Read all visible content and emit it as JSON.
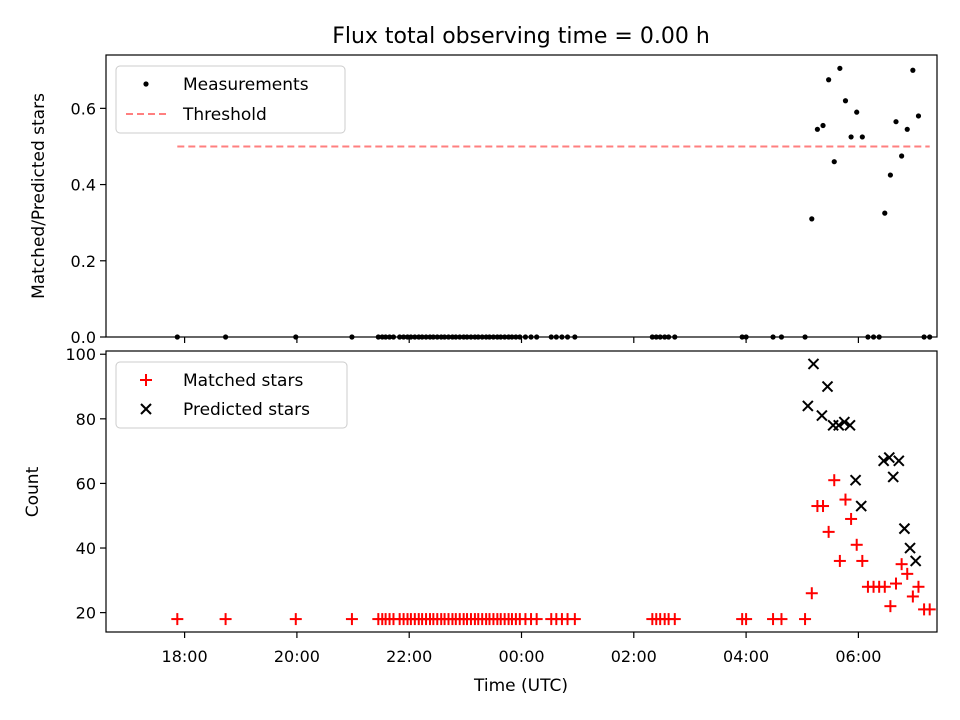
{
  "title": "Flux total observing time = 0.00 h",
  "xlabel": "Time (UTC)",
  "x_ticks": [
    "18:00",
    "20:00",
    "22:00",
    "00:00",
    "02:00",
    "04:00",
    "06:00"
  ],
  "colors": {
    "measurement": "#000000",
    "threshold": "#ff7f7f",
    "matched": "#ff0000",
    "predicted": "#000000"
  },
  "chart_data": [
    {
      "type": "scatter",
      "ylabel": "Matched/Predicted stars",
      "ylim": [
        0,
        0.74
      ],
      "y_ticks": [
        "0.0",
        "0.2",
        "0.4",
        "0.6"
      ],
      "xlim_hours": [
        16.6,
        31.4
      ],
      "legend_position": "top-left",
      "grid": false,
      "series": [
        {
          "name": "Measurements",
          "marker": "dot",
          "x_hours": [
            17.87,
            18.73,
            19.98,
            20.98,
            21.45,
            21.52,
            21.58,
            21.65,
            21.72,
            21.83,
            21.9,
            21.97,
            22.03,
            22.1,
            22.17,
            22.23,
            22.3,
            22.37,
            22.43,
            22.5,
            22.57,
            22.63,
            22.7,
            22.77,
            22.83,
            22.9,
            22.97,
            23.03,
            23.1,
            23.17,
            23.23,
            23.3,
            23.37,
            23.43,
            23.5,
            23.57,
            23.63,
            23.7,
            23.77,
            23.83,
            23.9,
            23.97,
            24.07,
            24.17,
            24.27,
            24.53,
            24.62,
            24.72,
            24.82,
            24.95,
            26.33,
            26.4,
            26.47,
            26.55,
            26.62,
            26.73,
            27.93,
            28.0,
            28.48,
            28.63,
            29.05,
            29.17,
            29.27,
            29.37,
            29.47,
            29.57,
            29.67,
            29.77,
            29.87,
            29.97,
            30.07,
            30.17,
            30.27,
            30.37,
            30.47,
            30.57,
            30.67,
            30.77,
            30.87,
            30.97,
            31.07,
            31.17,
            31.27
          ],
          "y": [
            0,
            0,
            0,
            0,
            0,
            0,
            0,
            0,
            0,
            0,
            0,
            0,
            0,
            0,
            0,
            0,
            0,
            0,
            0,
            0,
            0,
            0,
            0,
            0,
            0,
            0,
            0,
            0,
            0,
            0,
            0,
            0,
            0,
            0,
            0,
            0,
            0,
            0,
            0,
            0,
            0,
            0,
            0,
            0,
            0,
            0,
            0,
            0,
            0,
            0,
            0,
            0,
            0,
            0,
            0,
            0,
            0,
            0,
            0,
            0,
            0,
            0.31,
            0.545,
            0.555,
            0.675,
            0.46,
            0.705,
            0.62,
            0.525,
            0.59,
            0.525,
            0,
            0,
            0,
            0.325,
            0.425,
            0.565,
            0.475,
            0.545,
            0.7,
            0.58,
            0,
            0
          ]
        },
        {
          "name": "Threshold",
          "style": "dashed",
          "x_hours": [
            17.87,
            31.27
          ],
          "y": [
            0.5,
            0.5
          ]
        }
      ]
    },
    {
      "type": "scatter",
      "ylabel": "Count",
      "ylim": [
        14,
        101
      ],
      "y_ticks": [
        "20",
        "40",
        "60",
        "80",
        "100"
      ],
      "xlim_hours": [
        16.6,
        31.4
      ],
      "legend_position": "top-left",
      "grid": false,
      "series": [
        {
          "name": "Matched stars",
          "marker": "plus",
          "x_hours": [
            17.87,
            18.73,
            19.98,
            20.98,
            21.45,
            21.52,
            21.58,
            21.65,
            21.72,
            21.83,
            21.9,
            21.97,
            22.03,
            22.1,
            22.17,
            22.23,
            22.3,
            22.37,
            22.43,
            22.5,
            22.57,
            22.63,
            22.7,
            22.77,
            22.83,
            22.9,
            22.97,
            23.03,
            23.1,
            23.17,
            23.23,
            23.3,
            23.37,
            23.43,
            23.5,
            23.57,
            23.63,
            23.7,
            23.77,
            23.83,
            23.9,
            23.97,
            24.07,
            24.17,
            24.27,
            24.53,
            24.62,
            24.72,
            24.82,
            24.95,
            26.33,
            26.4,
            26.47,
            26.55,
            26.62,
            26.73,
            27.93,
            28.0,
            28.48,
            28.63,
            29.05,
            29.17,
            29.27,
            29.37,
            29.47,
            29.57,
            29.67,
            29.77,
            29.87,
            29.97,
            30.07,
            30.17,
            30.27,
            30.37,
            30.47,
            30.57,
            30.67,
            30.77,
            30.87,
            30.97,
            31.07,
            31.17,
            31.27
          ],
          "y": [
            18,
            18,
            18,
            18,
            18,
            18,
            18,
            18,
            18,
            18,
            18,
            18,
            18,
            18,
            18,
            18,
            18,
            18,
            18,
            18,
            18,
            18,
            18,
            18,
            18,
            18,
            18,
            18,
            18,
            18,
            18,
            18,
            18,
            18,
            18,
            18,
            18,
            18,
            18,
            18,
            18,
            18,
            18,
            18,
            18,
            18,
            18,
            18,
            18,
            18,
            18,
            18,
            18,
            18,
            18,
            18,
            18,
            18,
            18,
            18,
            18,
            26,
            53,
            53,
            45,
            61,
            36,
            55,
            49,
            41,
            36,
            28,
            28,
            28,
            28,
            22,
            29,
            35,
            32,
            25,
            28,
            21,
            21
          ]
        },
        {
          "name": "Predicted stars",
          "marker": "x",
          "x_hours": [
            29.1,
            29.2,
            29.35,
            29.45,
            29.55,
            29.65,
            29.75,
            29.85,
            29.95,
            30.05,
            30.45,
            30.55,
            30.62,
            30.72,
            30.82,
            30.92,
            31.02
          ],
          "y": [
            84,
            97,
            81,
            90,
            78,
            78,
            79,
            78,
            61,
            53,
            67,
            68,
            62,
            67,
            46,
            40,
            36
          ]
        }
      ]
    }
  ]
}
